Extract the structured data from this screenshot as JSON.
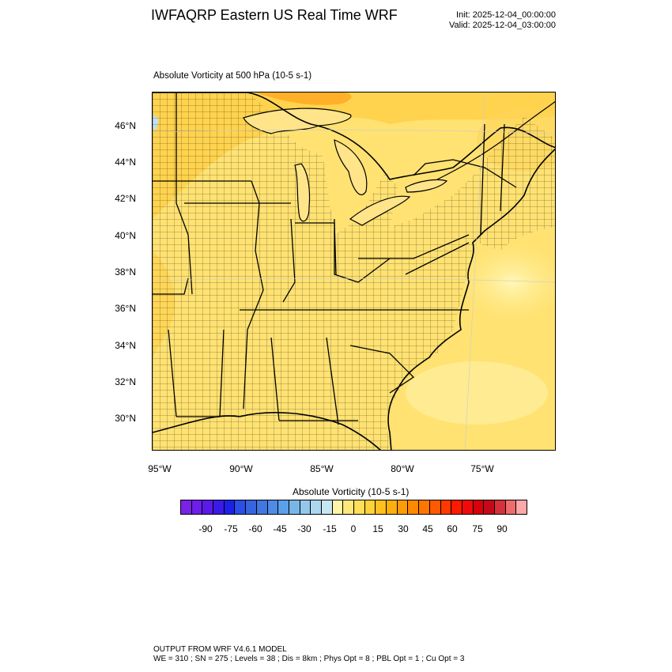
{
  "header": {
    "title": "IWFAQRP Eastern US Real Time WRF",
    "init": "Init: 2025-12-04_00:00:00",
    "valid": "Valid: 2025-12-04_03:00:00"
  },
  "map": {
    "field_title": "Absolute Vorticity at 500 hPa   (10-5 s-1)",
    "lat_labels": [
      "46°N",
      "44°N",
      "42°N",
      "40°N",
      "38°N",
      "36°N",
      "34°N",
      "32°N",
      "30°N"
    ],
    "lon_labels": [
      "95°W",
      "90°W",
      "85°W",
      "80°W",
      "75°W"
    ]
  },
  "colorbar": {
    "title": "Absolute Vorticity  (10-5 s-1)",
    "ticks": [
      "-90",
      "-75",
      "-60",
      "-45",
      "-30",
      "-15",
      "0",
      "15",
      "30",
      "45",
      "60",
      "75",
      "90"
    ],
    "colors": [
      "#7a22e6",
      "#6d1ee8",
      "#5a1ae8",
      "#3a1ae6",
      "#1d21e6",
      "#2a4ee6",
      "#3765e0",
      "#4276e2",
      "#4f8be6",
      "#5aa0ea",
      "#78b6ea",
      "#93c8ec",
      "#abd7ee",
      "#c6e6f4",
      "#fff4a8",
      "#ffe87a",
      "#ffdf58",
      "#ffd23a",
      "#ffc020",
      "#ffae10",
      "#ff9c05",
      "#ff8a00",
      "#ff7600",
      "#ff5a00",
      "#ff3a00",
      "#ff1a00",
      "#f00a0a",
      "#d8000a",
      "#c40a1a",
      "#d8303a",
      "#ee6c6c",
      "#ffa8a8"
    ]
  },
  "footer": {
    "line1": "OUTPUT FROM WRF V4.6.1 MODEL",
    "line2": "WE = 310 ; SN = 275 ; Levels = 38 ; Dis = 8km ; Phys Opt = 8 ; PBL Opt = 1 ; Cu Opt = 3"
  }
}
